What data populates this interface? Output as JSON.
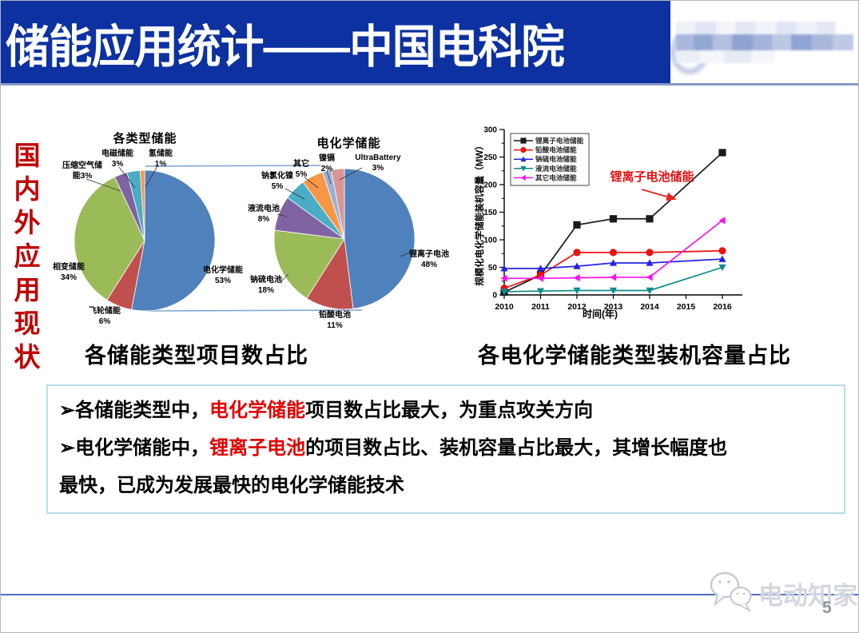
{
  "header": {
    "title": "储能应用统计——中国电科院"
  },
  "side_label": "国内外应用现状",
  "colors": {
    "header_bg": "#0d31a1",
    "header_rule": "#8a9ac9",
    "side_text": "#c00000",
    "highlight_red": "#e00000",
    "box_border": "#b5dde6",
    "footer_line": "#4e6fc1",
    "connector_blue": "#7ba2d0"
  },
  "chart_data": [
    {
      "type": "pie",
      "title": "各类型储能",
      "caption": "各储能类型项目数占比",
      "slices": [
        {
          "name": "电化学储能",
          "pct": 53,
          "color": "#4F81BD"
        },
        {
          "name": "飞轮储能",
          "pct": 6,
          "color": "#C0504D"
        },
        {
          "name": "相变储能",
          "pct": 34,
          "color": "#9BBB59"
        },
        {
          "name": "压缩空气储能",
          "pct": 3,
          "color": "#8064A2"
        },
        {
          "name": "电磁储能",
          "pct": 3,
          "color": "#4BACC6"
        },
        {
          "name": "氢储能",
          "pct": 1,
          "color": "#F79646"
        }
      ]
    },
    {
      "type": "pie",
      "title": "电化学储能",
      "caption": "各电化学储能类型装机容量占比",
      "slices": [
        {
          "name": "锂离子电池",
          "pct": 48,
          "color": "#4F81BD"
        },
        {
          "name": "铅酸电池",
          "pct": 11,
          "color": "#C0504D"
        },
        {
          "name": "钠硫电池",
          "pct": 18,
          "color": "#9BBB59"
        },
        {
          "name": "液流电池",
          "pct": 8,
          "color": "#8064A2"
        },
        {
          "name": "钠氯化镍",
          "pct": 5,
          "color": "#4BACC6"
        },
        {
          "name": "其它",
          "pct": 5,
          "color": "#F79646"
        },
        {
          "name": "镍镉",
          "pct": 2,
          "color": "#95B3D7"
        },
        {
          "name": "UltraBattery",
          "pct": 3,
          "color": "#D99694"
        }
      ]
    },
    {
      "type": "line",
      "xlabel": "时间(年)",
      "ylabel": "规模化电化学储能装机容量（MW）",
      "annotation": "锂离子电池储能",
      "x": [
        2010,
        2011,
        2012,
        2013,
        2014,
        2016
      ],
      "xticks": [
        2010,
        2011,
        2012,
        2013,
        2014,
        2015,
        2016
      ],
      "yticks": [
        0,
        50,
        100,
        150,
        200,
        250,
        300
      ],
      "xlim": [
        2010,
        2016
      ],
      "ylim": [
        0,
        300
      ],
      "legend_position": "top-left",
      "series": [
        {
          "name": "锂离子电池储能",
          "color": "#1a1a1a",
          "marker": "square",
          "values": [
            5,
            36,
            127,
            138,
            138,
            258
          ]
        },
        {
          "name": "铅酸电池储能",
          "color": "#ee1010",
          "marker": "circle",
          "values": [
            12,
            36,
            77,
            77,
            77,
            80
          ]
        },
        {
          "name": "钠硫电池储能",
          "color": "#2424e0",
          "marker": "triangle-up",
          "values": [
            48,
            48,
            52,
            58,
            58,
            65
          ]
        },
        {
          "name": "液流电池储能",
          "color": "#0f8b8b",
          "marker": "triangle-down",
          "values": [
            6,
            7,
            8,
            8,
            8,
            50
          ]
        },
        {
          "name": "其它电池储能",
          "color": "#f714ee",
          "marker": "triangle-left",
          "values": [
            30,
            30,
            31,
            32,
            32,
            135
          ]
        }
      ]
    }
  ],
  "notes": {
    "lines": [
      [
        {
          "t": "➢各储能类型中，"
        },
        {
          "t": "电化学储能",
          "red": true
        },
        {
          "t": "项目数占比最大，为重点攻关方向"
        }
      ],
      [
        {
          "t": "➢电化学储能中，"
        },
        {
          "t": "锂离子电池",
          "red": true
        },
        {
          "t": "的项目数占比、装机容量占比最大，其增长幅度也"
        }
      ],
      [
        {
          "t": "最快，已成为发展最快的电化学储能技术"
        }
      ]
    ]
  },
  "footer": {
    "brand": "电动知家",
    "page": "5",
    "logo": "wechat-icon"
  }
}
